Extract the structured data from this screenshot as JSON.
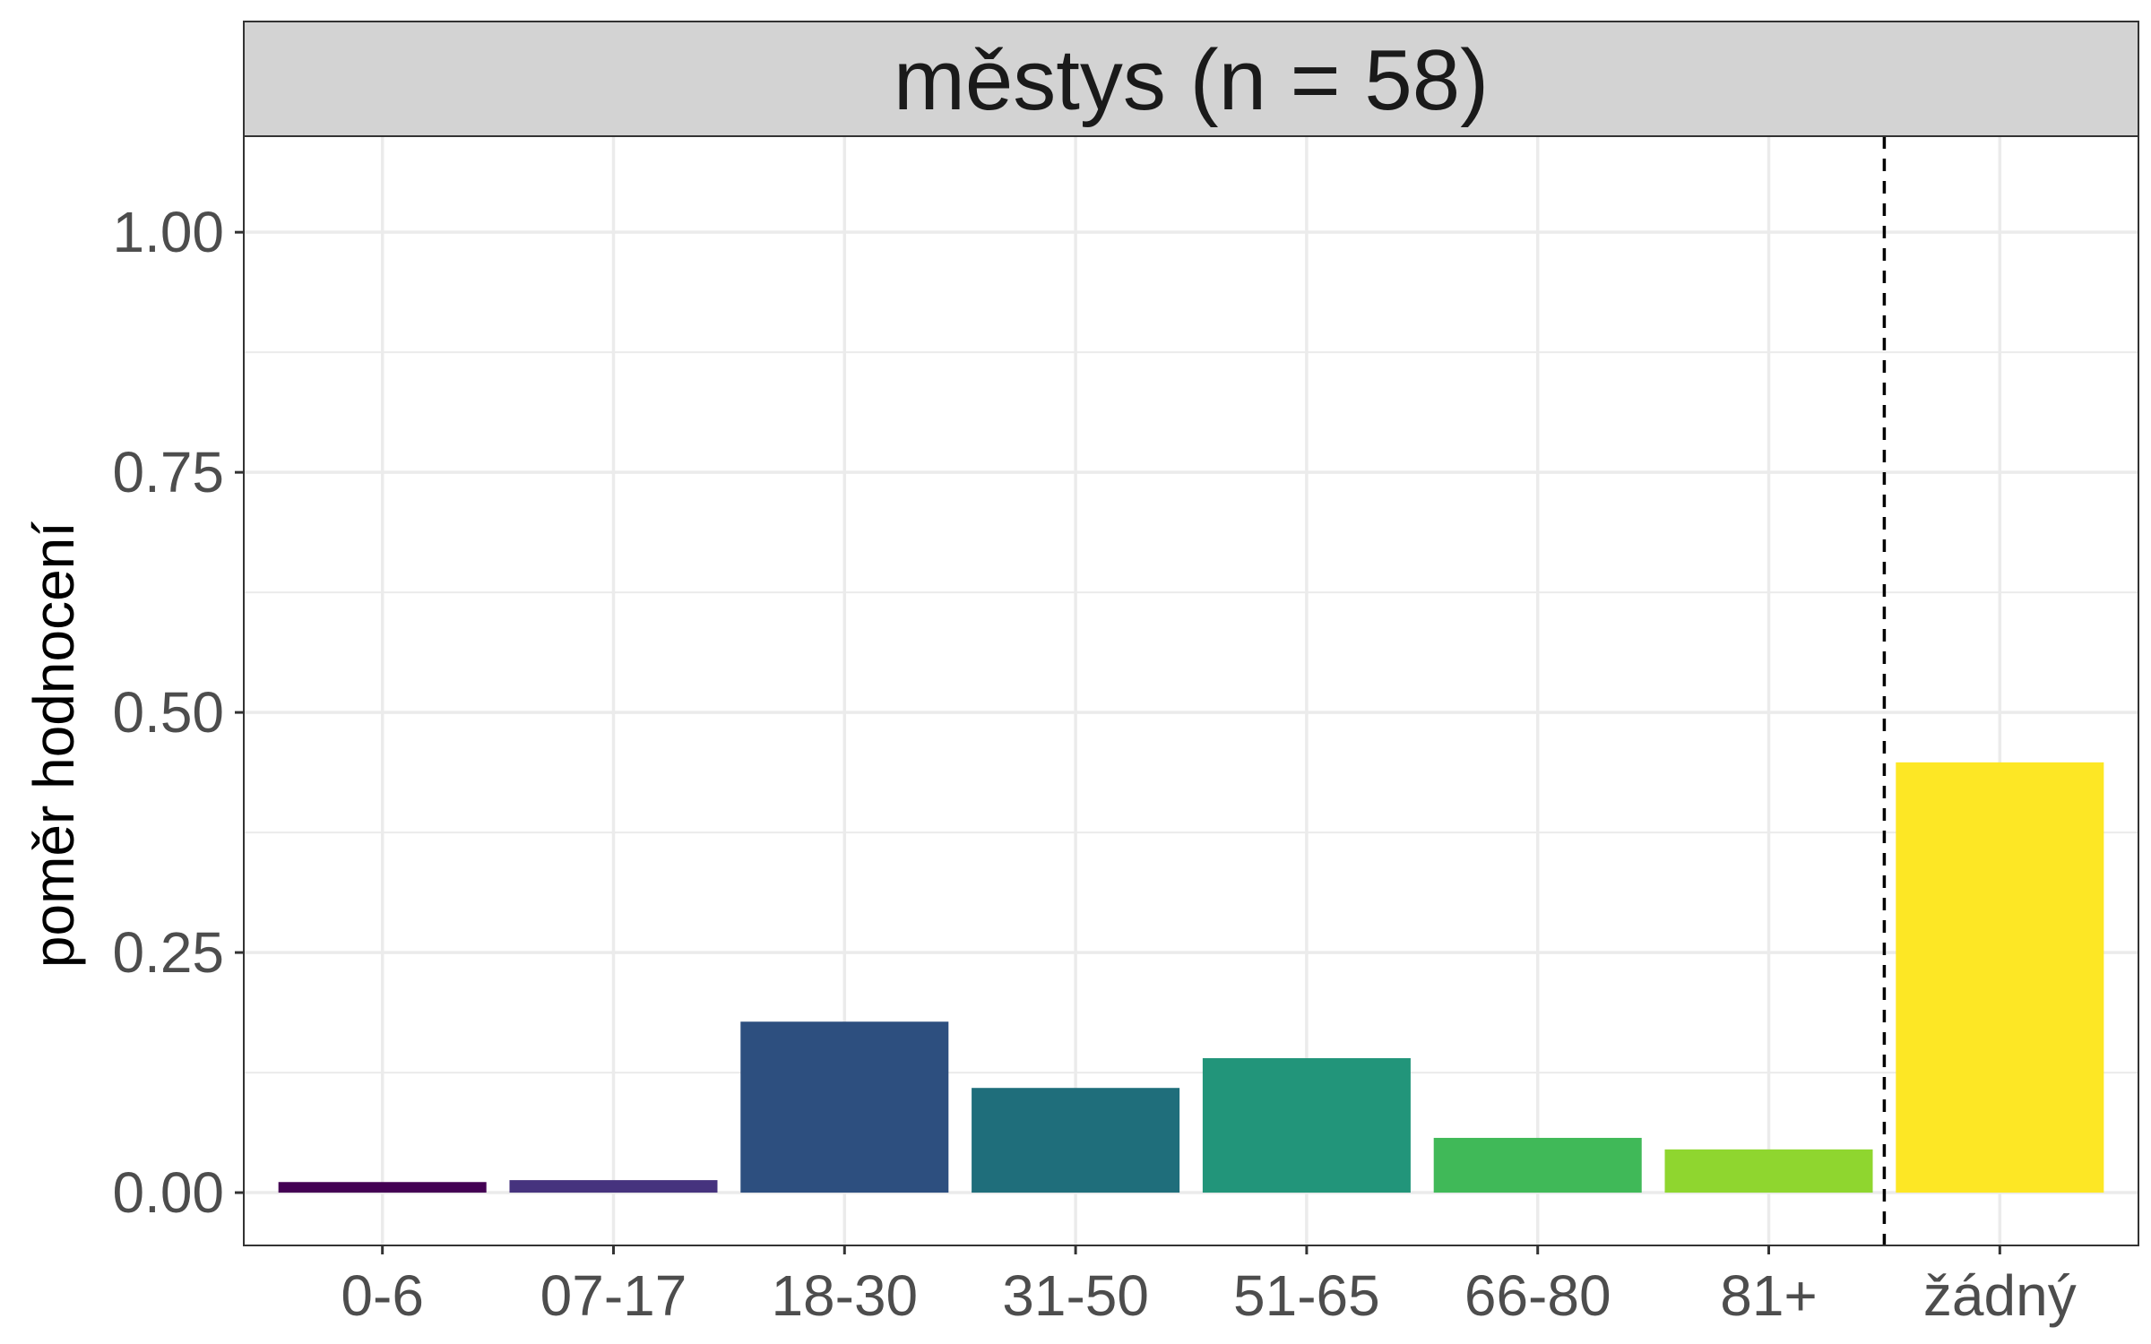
{
  "chart_data": {
    "type": "bar",
    "facet_title": "městys (n = 58)",
    "xlabel": "",
    "ylabel": "poměr hodnocení",
    "ylim": [
      -0.055,
      1.1
    ],
    "yticks": [
      0,
      0.25,
      0.5,
      0.75,
      1
    ],
    "ytick_labels": [
      "0.00",
      "0.25",
      "0.50",
      "0.75",
      "1.00"
    ],
    "categories": [
      "0-6",
      "07-17",
      "18-30",
      "31-50",
      "51-65",
      "66-80",
      "81+",
      "žádný"
    ],
    "values": [
      0.011,
      0.013,
      0.178,
      0.109,
      0.14,
      0.057,
      0.045,
      0.448
    ],
    "colors": [
      "#440154",
      "#46337E",
      "#2D4F7F",
      "#1F6E7B",
      "#22957A",
      "#40B958",
      "#8FD62F",
      "#FDE725"
    ],
    "separator_after_index": 6,
    "grid": true
  }
}
